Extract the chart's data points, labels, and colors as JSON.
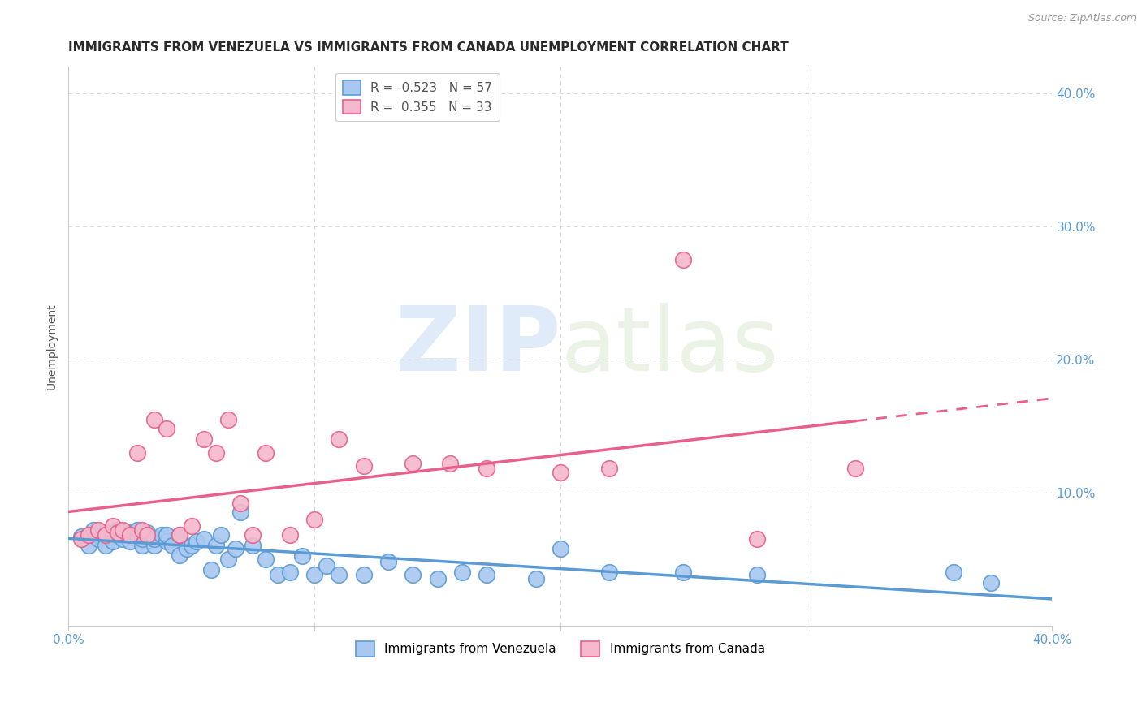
{
  "title": "IMMIGRANTS FROM VENEZUELA VS IMMIGRANTS FROM CANADA UNEMPLOYMENT CORRELATION CHART",
  "source": "Source: ZipAtlas.com",
  "ylabel": "Unemployment",
  "xlim": [
    0.0,
    0.4
  ],
  "ylim": [
    0.0,
    0.42
  ],
  "x_ticks": [
    0.0,
    0.1,
    0.2,
    0.3,
    0.4
  ],
  "y_ticks": [
    0.1,
    0.2,
    0.3,
    0.4
  ],
  "y_tick_labels": [
    "10.0%",
    "20.0%",
    "30.0%",
    "40.0%"
  ],
  "series_venezuela": {
    "line_color": "#5b9bd5",
    "marker_face": "#a8c8f0",
    "marker_edge": "#5b9bd5",
    "R": -0.523,
    "N": 57,
    "x": [
      0.005,
      0.008,
      0.01,
      0.01,
      0.012,
      0.015,
      0.015,
      0.018,
      0.02,
      0.02,
      0.022,
      0.025,
      0.025,
      0.028,
      0.028,
      0.03,
      0.03,
      0.032,
      0.035,
      0.035,
      0.038,
      0.04,
      0.04,
      0.042,
      0.045,
      0.045,
      0.048,
      0.05,
      0.052,
      0.055,
      0.058,
      0.06,
      0.062,
      0.065,
      0.068,
      0.07,
      0.075,
      0.08,
      0.085,
      0.09,
      0.095,
      0.1,
      0.105,
      0.11,
      0.12,
      0.13,
      0.14,
      0.15,
      0.16,
      0.17,
      0.19,
      0.2,
      0.22,
      0.25,
      0.28,
      0.36,
      0.375
    ],
    "y": [
      0.067,
      0.06,
      0.072,
      0.068,
      0.065,
      0.06,
      0.07,
      0.063,
      0.068,
      0.072,
      0.065,
      0.07,
      0.063,
      0.068,
      0.072,
      0.06,
      0.065,
      0.07,
      0.06,
      0.065,
      0.068,
      0.063,
      0.068,
      0.06,
      0.053,
      0.068,
      0.058,
      0.06,
      0.063,
      0.065,
      0.042,
      0.06,
      0.068,
      0.05,
      0.058,
      0.085,
      0.06,
      0.05,
      0.038,
      0.04,
      0.052,
      0.038,
      0.045,
      0.038,
      0.038,
      0.048,
      0.038,
      0.035,
      0.04,
      0.038,
      0.035,
      0.058,
      0.04,
      0.04,
      0.038,
      0.04,
      0.032
    ]
  },
  "series_canada": {
    "line_color": "#e8608a",
    "marker_face": "#f5b8cc",
    "marker_edge": "#e8608a",
    "R": 0.355,
    "N": 33,
    "x": [
      0.005,
      0.008,
      0.012,
      0.015,
      0.018,
      0.02,
      0.022,
      0.025,
      0.028,
      0.03,
      0.032,
      0.035,
      0.04,
      0.045,
      0.05,
      0.055,
      0.06,
      0.065,
      0.07,
      0.075,
      0.08,
      0.09,
      0.1,
      0.11,
      0.12,
      0.14,
      0.155,
      0.17,
      0.2,
      0.22,
      0.25,
      0.28,
      0.32
    ],
    "y": [
      0.065,
      0.068,
      0.072,
      0.068,
      0.075,
      0.07,
      0.072,
      0.068,
      0.13,
      0.072,
      0.068,
      0.155,
      0.148,
      0.068,
      0.075,
      0.14,
      0.13,
      0.155,
      0.092,
      0.068,
      0.13,
      0.068,
      0.08,
      0.14,
      0.12,
      0.122,
      0.122,
      0.118,
      0.115,
      0.118,
      0.275,
      0.065,
      0.118
    ]
  },
  "background_color": "#ffffff",
  "grid_color": "#d8d8d8",
  "title_color": "#2a2a2a",
  "right_tick_color": "#5b9bd5",
  "legend_R_venezuela_color": "#e05050",
  "legend_R_canada_color": "#e05050",
  "legend_N_color": "#5b9bd5"
}
